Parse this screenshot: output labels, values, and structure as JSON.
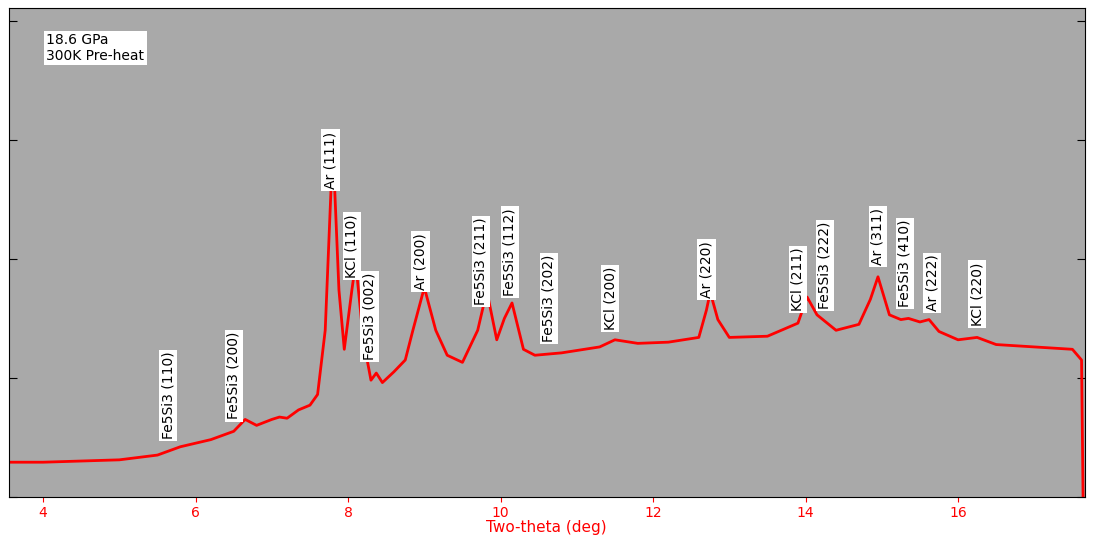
{
  "chart_data": {
    "type": "line",
    "subtitle": "18.6 GPa\n300K Pre-heat",
    "x_label": "Two-theta (deg)",
    "x": [
      3.55,
      4.0,
      5.0,
      5.5,
      5.8,
      6.2,
      6.5,
      6.65,
      6.8,
      7.0,
      7.1,
      7.2,
      7.35,
      7.5,
      7.6,
      7.7,
      7.8,
      7.88,
      7.95,
      8.05,
      8.1,
      8.2,
      8.3,
      8.37,
      8.45,
      8.6,
      8.75,
      8.85,
      9.0,
      9.15,
      9.3,
      9.5,
      9.7,
      9.82,
      9.95,
      10.05,
      10.15,
      10.3,
      10.45,
      10.8,
      11.3,
      11.5,
      11.8,
      12.2,
      12.6,
      12.7,
      12.75,
      12.85,
      13.0,
      13.5,
      13.9,
      14.02,
      14.15,
      14.4,
      14.7,
      14.85,
      14.95,
      15.1,
      15.25,
      15.35,
      15.5,
      15.62,
      15.75,
      16.0,
      16.25,
      16.5,
      17.0,
      17.5,
      17.62,
      17.64
    ],
    "values": [
      0.29,
      0.29,
      0.31,
      0.35,
      0.42,
      0.48,
      0.55,
      0.65,
      0.6,
      0.65,
      0.67,
      0.66,
      0.73,
      0.77,
      0.86,
      1.4,
      2.96,
      1.74,
      1.24,
      1.74,
      1.97,
      1.32,
      0.98,
      1.04,
      0.96,
      1.05,
      1.15,
      1.4,
      1.76,
      1.4,
      1.19,
      1.13,
      1.4,
      1.73,
      1.32,
      1.5,
      1.63,
      1.24,
      1.19,
      1.21,
      1.26,
      1.32,
      1.29,
      1.3,
      1.34,
      1.57,
      1.72,
      1.49,
      1.34,
      1.35,
      1.46,
      1.68,
      1.53,
      1.4,
      1.45,
      1.66,
      1.85,
      1.53,
      1.49,
      1.5,
      1.47,
      1.49,
      1.39,
      1.32,
      1.34,
      1.28,
      1.26,
      1.24,
      1.15,
      0.0
    ],
    "color": "#ff0000",
    "xlim": [
      3.55,
      17.66
    ],
    "xticks": [
      4,
      6,
      8,
      10,
      12,
      14,
      16
    ],
    "ylim": [
      0,
      4.11
    ],
    "yticks": [
      0,
      1,
      2,
      3,
      4
    ],
    "tick_labels": "x",
    "annotations": [
      {
        "text": "Fe5Si3 (110)",
        "x": 5.64
      },
      {
        "text": "Fe5Si3 (200)",
        "x": 6.5
      },
      {
        "text": "Ar (111)",
        "x": 7.77
      },
      {
        "text": "KCl (110)",
        "x": 8.05
      },
      {
        "text": "Fe5Si3 (002)",
        "x": 8.28
      },
      {
        "text": "Ar (200)",
        "x": 8.95
      },
      {
        "text": "Fe5Si3 (211)",
        "x": 9.74
      },
      {
        "text": "Fe5Si3 (112)",
        "x": 10.12
      },
      {
        "text": "Fe5Si3 (202)",
        "x": 10.63
      },
      {
        "text": "KCl (200)",
        "x": 11.44
      },
      {
        "text": "Ar (220)",
        "x": 12.7
      },
      {
        "text": "KCl (211)",
        "x": 13.9
      },
      {
        "text": "Fe5Si3 (222)",
        "x": 14.25
      },
      {
        "text": "Ar (311)",
        "x": 14.95
      },
      {
        "text": "Fe5Si3 (410)",
        "x": 15.3
      },
      {
        "text": "Ar (222)",
        "x": 15.66
      },
      {
        "text": "KCl (220)",
        "x": 16.25
      }
    ]
  }
}
